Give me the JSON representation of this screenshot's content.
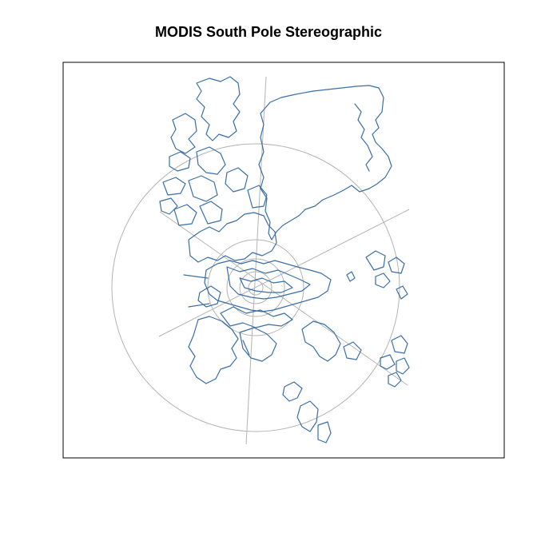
{
  "title": "MODIS South Pole Stereographic",
  "colors": {
    "coastline": "#3a6ea5",
    "graticule": "#b3b3b3",
    "frame": "#000000",
    "background": "#ffffff"
  }
}
